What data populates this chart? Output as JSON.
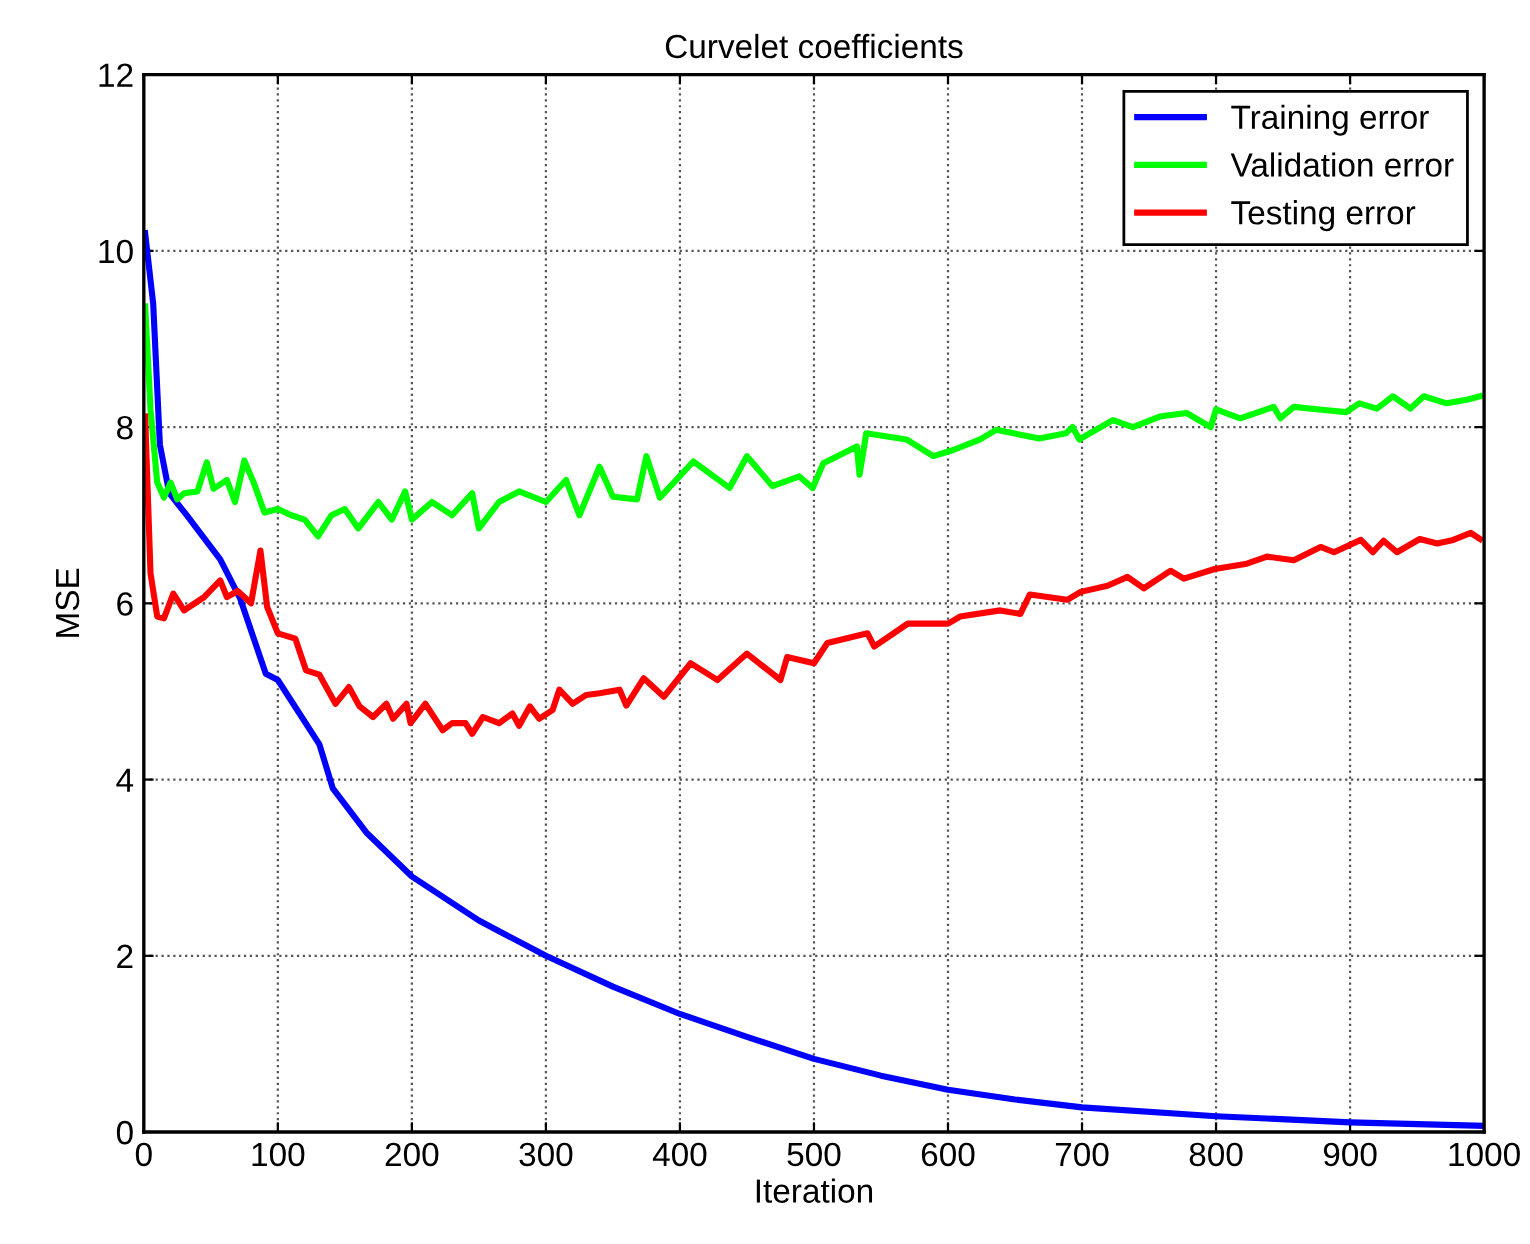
{
  "chart_data": {
    "type": "line",
    "title": "Curvelet coefficients",
    "xlabel": "Iteration",
    "ylabel": "MSE",
    "xlim": [
      0,
      1000
    ],
    "ylim": [
      0,
      12
    ],
    "xticks": [
      0,
      100,
      200,
      300,
      400,
      500,
      600,
      700,
      800,
      900,
      1000
    ],
    "yticks": [
      0,
      2,
      4,
      6,
      8,
      10,
      12
    ],
    "grid": true,
    "legend": "top right",
    "line_style": "solid",
    "marker": "none",
    "series": [
      {
        "name": "Training error",
        "color": "#0000ff",
        "x": [
          1,
          7,
          12,
          19,
          32,
          42,
          57,
          72,
          91,
          100,
          131,
          141,
          166,
          200,
          250,
          300,
          350,
          400,
          450,
          500,
          550,
          600,
          650,
          700,
          800,
          900,
          1000
        ],
        "values": [
          10.2,
          9.4,
          7.8,
          7.25,
          7.0,
          6.8,
          6.5,
          6.05,
          5.2,
          5.13,
          4.4,
          3.9,
          3.4,
          2.9,
          2.4,
          2.0,
          1.65,
          1.34,
          1.08,
          0.83,
          0.64,
          0.48,
          0.37,
          0.28,
          0.18,
          0.11,
          0.07
        ]
      },
      {
        "name": "Validation error",
        "color": "#00ff00",
        "x": [
          1,
          5,
          10,
          15,
          20,
          25,
          30,
          40,
          47,
          52,
          62,
          68,
          75,
          82,
          90,
          100,
          110,
          120,
          130,
          140,
          150,
          160,
          175,
          185,
          195,
          200,
          215,
          230,
          245,
          250,
          265,
          280,
          300,
          315,
          325,
          340,
          350,
          368,
          375,
          385,
          410,
          437,
          450,
          469,
          489,
          499,
          507,
          532,
          534,
          539,
          569,
          589,
          604,
          624,
          636,
          649,
          668,
          688,
          693,
          698,
          723,
          738,
          758,
          778,
          796,
          800,
          818,
          843,
          848,
          858,
          877,
          897,
          907,
          920,
          932,
          945,
          955,
          972,
          987,
          997
        ],
        "values": [
          9.37,
          8.2,
          7.37,
          7.2,
          7.37,
          7.18,
          7.25,
          7.27,
          7.6,
          7.3,
          7.4,
          7.15,
          7.62,
          7.37,
          7.03,
          7.07,
          7.0,
          6.95,
          6.76,
          7.0,
          7.07,
          6.85,
          7.15,
          6.95,
          7.27,
          6.95,
          7.15,
          7.0,
          7.25,
          6.85,
          7.15,
          7.27,
          7.15,
          7.4,
          7.0,
          7.55,
          7.21,
          7.18,
          7.67,
          7.2,
          7.61,
          7.31,
          7.67,
          7.33,
          7.44,
          7.31,
          7.59,
          7.78,
          7.46,
          7.93,
          7.86,
          7.67,
          7.74,
          7.86,
          7.97,
          7.93,
          7.87,
          7.93,
          8.0,
          7.86,
          8.08,
          8.0,
          8.12,
          8.16,
          8.0,
          8.2,
          8.1,
          8.23,
          8.1,
          8.23,
          8.2,
          8.17,
          8.27,
          8.21,
          8.35,
          8.21,
          8.35,
          8.27,
          8.31,
          8.35
        ]
      },
      {
        "name": "Testing error",
        "color": "#ff0000",
        "x": [
          1,
          5,
          10,
          15,
          22,
          30,
          45,
          57,
          62,
          70,
          80,
          87,
          92,
          100,
          113,
          121,
          131,
          143,
          153,
          161,
          171,
          181,
          186,
          196,
          199,
          210,
          223,
          230,
          240,
          245,
          253,
          265,
          275,
          280,
          288,
          295,
          305,
          310,
          320,
          330,
          340,
          355,
          360,
          373,
          388,
          408,
          428,
          450,
          475,
          480,
          500,
          510,
          540,
          545,
          570,
          600,
          609,
          639,
          654,
          661,
          689,
          699,
          719,
          734,
          746,
          766,
          776,
          799,
          823,
          838,
          858,
          878,
          888,
          908,
          917,
          925,
          935,
          952,
          965,
          977,
          990,
          997
        ],
        "values": [
          8.12,
          6.34,
          5.85,
          5.83,
          6.11,
          5.92,
          6.07,
          6.26,
          6.07,
          6.14,
          6.0,
          6.6,
          5.96,
          5.66,
          5.6,
          5.24,
          5.19,
          4.86,
          5.05,
          4.83,
          4.71,
          4.86,
          4.69,
          4.86,
          4.64,
          4.86,
          4.56,
          4.64,
          4.64,
          4.52,
          4.71,
          4.64,
          4.75,
          4.61,
          4.83,
          4.69,
          4.79,
          5.02,
          4.86,
          4.96,
          4.98,
          5.02,
          4.84,
          5.15,
          4.94,
          5.32,
          5.13,
          5.43,
          5.13,
          5.39,
          5.32,
          5.55,
          5.66,
          5.51,
          5.77,
          5.77,
          5.85,
          5.92,
          5.88,
          6.1,
          6.04,
          6.13,
          6.2,
          6.3,
          6.17,
          6.37,
          6.28,
          6.39,
          6.45,
          6.53,
          6.49,
          6.64,
          6.58,
          6.72,
          6.58,
          6.71,
          6.58,
          6.73,
          6.68,
          6.72,
          6.8,
          6.73
        ]
      }
    ]
  }
}
